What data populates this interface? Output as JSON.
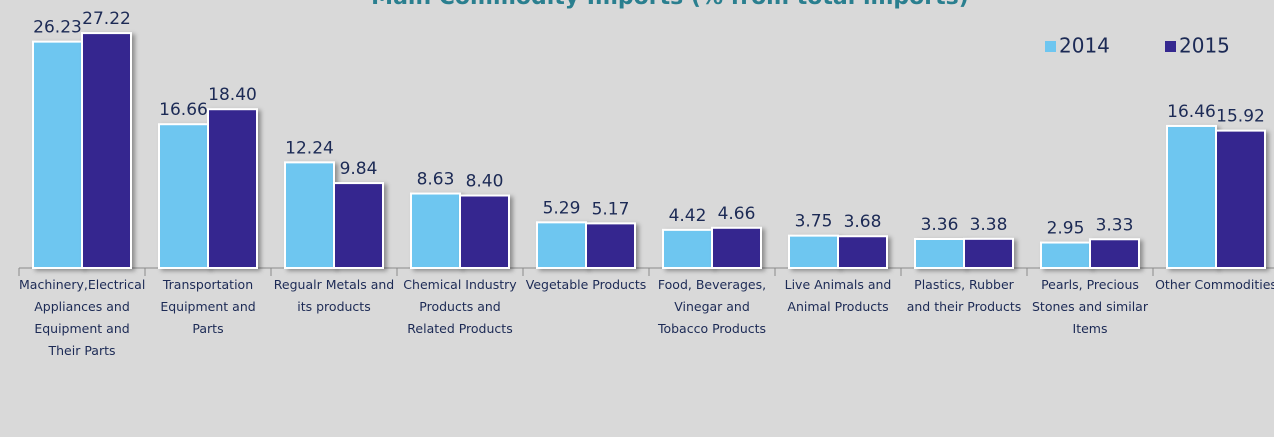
{
  "chart_data": {
    "type": "bar",
    "title": "Main Commodity Imports (% from total imports)",
    "categories": [
      "Machinery,Electrical Appliances and Equipment and Their Parts",
      "Transportation Equipment and Parts",
      "Regualr Metals and its products",
      "Chemical Industry Products and Related Products",
      "Vegetable Products",
      "Food, Beverages, Vinegar and Tobacco Products",
      "Live Animals and Animal Products",
      "Plastics, Rubber and their Products",
      "Pearls, Precious Stones and similar Items",
      "Other Commodities"
    ],
    "series": [
      {
        "name": "2014",
        "color": "#6ec6f0",
        "values": [
          26.23,
          16.66,
          12.24,
          8.63,
          5.29,
          4.42,
          3.75,
          3.36,
          2.95,
          16.46
        ],
        "value_labels": [
          "26.23",
          "16.66",
          "12.24",
          "8.63",
          "5.29",
          "4.42",
          "3.75",
          "3.36",
          "2.95",
          "16.46"
        ]
      },
      {
        "name": "2015",
        "color": "#35288f",
        "values": [
          27.22,
          18.4,
          9.84,
          8.4,
          5.17,
          4.66,
          3.68,
          3.38,
          3.33,
          15.92
        ],
        "value_labels": [
          "27.22",
          "18.40",
          "9.84",
          "8.40",
          "5.17",
          "4.66",
          "3.68",
          "3.38",
          "3.33",
          "15.92"
        ]
      }
    ],
    "legend": "top-right"
  }
}
